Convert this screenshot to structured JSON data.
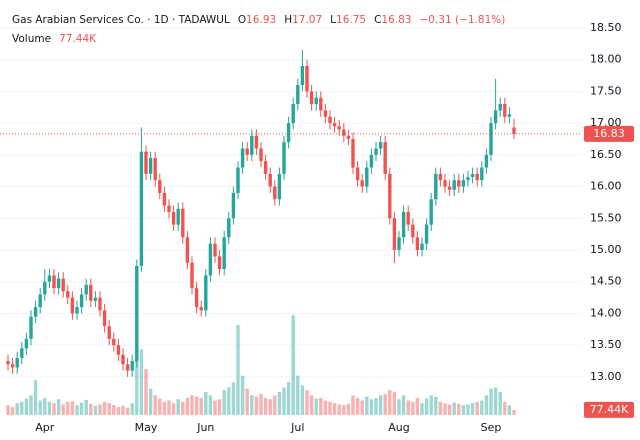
{
  "chart_data": {
    "type": "candlestick",
    "title": "Gas Arabian Services Co. · 1D · TADAWUL",
    "ohlc_legend": [
      {
        "label": "O",
        "value": 16.93
      },
      {
        "label": "H",
        "value": 17.07
      },
      {
        "label": "L",
        "value": 16.75
      },
      {
        "label": "C",
        "value": 16.83
      }
    ],
    "change": "−0.31 (−1.81%)",
    "volume_title": "Volume",
    "volume_value_label": "77.44K",
    "up_color": "#26a69a",
    "down_color": "#ef5350",
    "ylim": [
      12.4,
      18.94
    ],
    "volume_ylim": [
      0,
      1600000
    ],
    "yticks": [
      {
        "value": 13,
        "label": "13.00"
      },
      {
        "value": 13.5,
        "label": "13.50"
      },
      {
        "value": 14,
        "label": "14.00"
      },
      {
        "value": 14.5,
        "label": "14.50"
      },
      {
        "value": 15,
        "label": "15.00"
      },
      {
        "value": 15.5,
        "label": "15.50"
      },
      {
        "value": 16,
        "label": "16.00"
      },
      {
        "value": 16.5,
        "label": "16.50"
      },
      {
        "value": 17,
        "label": "17.00"
      },
      {
        "value": 17.5,
        "label": "17.50"
      },
      {
        "value": 18,
        "label": "18.00"
      },
      {
        "value": 18.5,
        "label": "18.50"
      }
    ],
    "grid": true,
    "categories": [
      null,
      null,
      null,
      null,
      null,
      null,
      null,
      null,
      "Apr",
      null,
      null,
      null,
      null,
      null,
      null,
      null,
      null,
      null,
      null,
      null,
      null,
      null,
      null,
      null,
      null,
      null,
      null,
      null,
      null,
      null,
      "May",
      null,
      null,
      null,
      null,
      null,
      null,
      null,
      null,
      null,
      null,
      null,
      null,
      "Jun",
      null,
      null,
      null,
      null,
      null,
      null,
      null,
      null,
      null,
      null,
      null,
      null,
      null,
      null,
      null,
      null,
      null,
      null,
      null,
      "Jul",
      null,
      null,
      null,
      null,
      null,
      null,
      null,
      null,
      null,
      null,
      null,
      null,
      null,
      null,
      null,
      null,
      null,
      null,
      null,
      null,
      null,
      "Aug",
      null,
      null,
      null,
      null,
      null,
      null,
      null,
      null,
      null,
      null,
      null,
      null,
      null,
      null,
      null,
      null,
      null,
      null,
      null,
      "Sep",
      null,
      null,
      null,
      null,
      null
    ],
    "open": [
      13.25,
      13.2,
      13.15,
      13.3,
      13.45,
      13.6,
      13.95,
      14.1,
      14.3,
      14.5,
      14.6,
      14.4,
      14.55,
      14.35,
      14.25,
      14,
      14.1,
      14.3,
      14.45,
      14.2,
      14.25,
      14.05,
      13.8,
      13.6,
      13.5,
      13.35,
      13.2,
      13.1,
      13.25,
      14.75,
      16.55,
      16.2,
      16.45,
      16.1,
      15.9,
      15.7,
      15.6,
      15.4,
      15.65,
      15.2,
      14.8,
      14.4,
      14.1,
      14.05,
      14.6,
      15.1,
      14.9,
      14.7,
      15.2,
      15.5,
      15.9,
      16.3,
      16.6,
      16.5,
      16.8,
      16.6,
      16.4,
      16.2,
      16,
      15.8,
      16.2,
      16.7,
      17,
      17.3,
      17.6,
      17.9,
      17.5,
      17.3,
      17.4,
      17.2,
      17.1,
      17,
      16.95,
      16.9,
      16.8,
      16.75,
      16.3,
      16.1,
      16,
      16.3,
      16.5,
      16.6,
      16.7,
      16.2,
      15.5,
      15,
      15.2,
      15.6,
      15.4,
      15.2,
      15,
      15.1,
      15.4,
      15.8,
      16.2,
      16.1,
      16,
      15.95,
      16.1,
      16,
      16.1,
      16.15,
      16.2,
      16.1,
      16.3,
      16.5,
      17,
      17.2,
      17.3,
      17.1,
      16.93
    ],
    "high": [
      13.35,
      13.3,
      13.4,
      13.55,
      13.7,
      14.05,
      14.2,
      14.4,
      14.7,
      14.7,
      14.7,
      14.65,
      14.65,
      14.45,
      14.35,
      14.2,
      14.4,
      14.55,
      14.55,
      14.35,
      14.35,
      14.15,
      13.9,
      13.7,
      13.6,
      13.45,
      13.3,
      13.35,
      14.85,
      16.93,
      16.65,
      16.55,
      16.55,
      16.2,
      16,
      15.8,
      15.7,
      15.75,
      15.75,
      15.3,
      14.9,
      14.5,
      14.2,
      14.7,
      15.2,
      15.2,
      15,
      15.3,
      15.6,
      16,
      16.4,
      16.7,
      16.7,
      16.9,
      16.9,
      16.7,
      16.5,
      16.3,
      16.1,
      16.3,
      16.8,
      17.1,
      17.4,
      17.7,
      18.15,
      18,
      17.6,
      17.5,
      17.5,
      17.3,
      17.2,
      17.1,
      17.05,
      17,
      16.9,
      16.85,
      16.4,
      16.2,
      16.4,
      16.6,
      16.7,
      16.8,
      16.8,
      16.3,
      15.6,
      15.3,
      15.7,
      15.7,
      15.5,
      15.3,
      15.2,
      15.5,
      15.9,
      16.3,
      16.3,
      16.2,
      16.1,
      16.2,
      16.2,
      16.2,
      16.25,
      16.3,
      16.3,
      16.4,
      16.6,
      17.1,
      17.7,
      17.4,
      17.4,
      17.25,
      17.07
    ],
    "low": [
      13.1,
      13.05,
      13.05,
      13.2,
      13.35,
      13.5,
      13.85,
      14,
      14.2,
      14.4,
      14.3,
      14.3,
      14.25,
      14.15,
      13.9,
      13.9,
      14,
      14.2,
      14.1,
      14.1,
      13.95,
      13.7,
      13.5,
      13.4,
      13.25,
      13.1,
      13,
      13,
      13.15,
      14.65,
      16.1,
      16.1,
      16,
      15.8,
      15.6,
      15.5,
      15.3,
      15.3,
      15.1,
      14.7,
      14.3,
      14,
      13.95,
      13.95,
      14.5,
      14.8,
      14.6,
      14.6,
      15.1,
      15.4,
      15.8,
      16.2,
      16.4,
      16.4,
      16.5,
      16.3,
      16.1,
      15.9,
      15.7,
      15.7,
      16.1,
      16.6,
      16.9,
      17.2,
      17.5,
      17.4,
      17.2,
      17.2,
      17.1,
      17,
      16.9,
      16.85,
      16.8,
      16.7,
      16.65,
      16.2,
      16,
      15.9,
      15.9,
      16.2,
      16.4,
      16.5,
      16.1,
      15.4,
      14.8,
      14.9,
      15.1,
      15.3,
      15.1,
      14.9,
      14.9,
      15,
      15.3,
      15.7,
      16,
      15.9,
      15.85,
      15.85,
      15.9,
      15.9,
      16,
      16.05,
      16,
      16,
      16.2,
      16.4,
      16.9,
      17.1,
      17,
      17,
      16.75
    ],
    "close": [
      13.2,
      13.15,
      13.3,
      13.45,
      13.6,
      13.95,
      14.1,
      14.3,
      14.5,
      14.6,
      14.4,
      14.55,
      14.35,
      14.25,
      14,
      14.1,
      14.3,
      14.45,
      14.2,
      14.25,
      14.05,
      13.8,
      13.6,
      13.5,
      13.35,
      13.2,
      13.1,
      13.25,
      14.75,
      16.55,
      16.2,
      16.45,
      16.1,
      15.9,
      15.7,
      15.6,
      15.4,
      15.65,
      15.2,
      14.8,
      14.4,
      14.1,
      14.05,
      14.6,
      15.1,
      14.9,
      14.7,
      15.2,
      15.5,
      15.9,
      16.3,
      16.6,
      16.5,
      16.8,
      16.6,
      16.4,
      16.2,
      16,
      15.8,
      16.2,
      16.7,
      17,
      17.3,
      17.6,
      17.9,
      17.5,
      17.3,
      17.4,
      17.2,
      17.1,
      17,
      16.95,
      16.9,
      16.8,
      16.75,
      16.3,
      16.1,
      16,
      16.3,
      16.5,
      16.6,
      16.7,
      16.2,
      15.5,
      15,
      15.2,
      15.6,
      15.4,
      15.2,
      15,
      15.1,
      15.4,
      15.8,
      16.2,
      16.1,
      16,
      15.95,
      16.1,
      16,
      16.1,
      16.15,
      16.2,
      16.1,
      16.3,
      16.5,
      17,
      17.2,
      17.3,
      17.1,
      17.14,
      16.83
    ],
    "volume": [
      150000,
      120000,
      180000,
      200000,
      250000,
      300000,
      530000,
      220000,
      260000,
      200000,
      180000,
      240000,
      160000,
      200000,
      210000,
      150000,
      190000,
      230000,
      170000,
      140000,
      160000,
      200000,
      180000,
      150000,
      120000,
      140000,
      110000,
      180000,
      900000,
      1000000,
      700000,
      400000,
      300000,
      250000,
      200000,
      220000,
      180000,
      240000,
      200000,
      260000,
      300000,
      280000,
      260000,
      350000,
      300000,
      220000,
      240000,
      380000,
      420000,
      500000,
      1370000,
      600000,
      400000,
      300000,
      280000,
      320000,
      260000,
      240000,
      300000,
      350000,
      420000,
      500000,
      1520000,
      600000,
      450000,
      380000,
      300000,
      250000,
      260000,
      220000,
      200000,
      180000,
      160000,
      150000,
      170000,
      300000,
      260000,
      220000,
      280000,
      240000,
      260000,
      300000,
      320000,
      380000,
      350000,
      240000,
      300000,
      220000,
      200000,
      260000,
      180000,
      250000,
      300000,
      280000,
      200000,
      180000,
      160000,
      190000,
      170000,
      150000,
      160000,
      180000,
      200000,
      220000,
      300000,
      400000,
      420000,
      350000,
      200000,
      150000,
      77440
    ]
  }
}
